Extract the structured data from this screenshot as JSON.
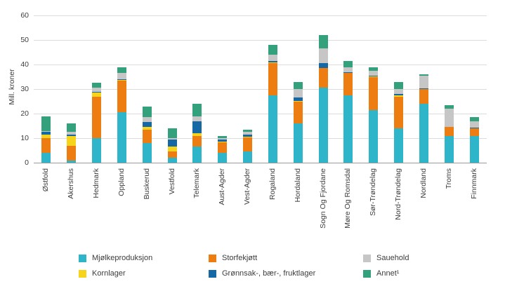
{
  "chart_data": {
    "type": "bar",
    "variant": "stacked",
    "title": "",
    "ylabel": "Mill. kroner",
    "ylim": [
      0,
      60
    ],
    "yticks": [
      0,
      10,
      20,
      30,
      40,
      50,
      60
    ],
    "grid": "horizontal",
    "legend_position": "bottom",
    "categories": [
      "Østfold",
      "Akershus",
      "Hedmark",
      "Oppland",
      "Buskerud",
      "Vestfold",
      "Telemark",
      "Aust-Agder",
      "Vest-Agder",
      "Rogaland",
      "Hordaland",
      "Sogn Og Fjordane",
      "Møre Og Romsdal",
      "Sør-Trøndelag",
      "Nord-Trøndelag",
      "Nordland",
      "Troms",
      "Finnmark"
    ],
    "series": [
      {
        "name": "Mjølkeproduksjon",
        "color": "#2fb5c9",
        "values": [
          4,
          1,
          10,
          20.5,
          8,
          2,
          6.5,
          4,
          4.5,
          27.5,
          16,
          30.5,
          27.5,
          21.5,
          14,
          24,
          11,
          11
        ]
      },
      {
        "name": "Storfekjøtt",
        "color": "#ee7d11",
        "values": [
          6,
          6,
          17,
          13,
          5.5,
          2.5,
          4.5,
          4.5,
          6,
          13,
          9,
          8,
          9,
          13.5,
          13,
          6,
          3.5,
          3
        ]
      },
      {
        "name": "Kornlager",
        "color": "#f6d41c",
        "values": [
          1.5,
          4,
          1.5,
          0.3,
          1,
          2,
          1,
          0.2,
          0.2,
          0.3,
          0.2,
          0,
          0,
          0.3,
          0.5,
          0,
          0,
          0
        ]
      },
      {
        "name": "Grønnsak-, bær-, fruktlager",
        "color": "#1668a5",
        "values": [
          1,
          0.5,
          0.5,
          0.2,
          2,
          3,
          5,
          0.8,
          0.8,
          0.7,
          1.3,
          2,
          0.5,
          0.2,
          0.5,
          0.3,
          0,
          0.3
        ]
      },
      {
        "name": "Sauehold",
        "color": "#c6c6c6",
        "values": [
          0.5,
          1,
          1.5,
          2.5,
          2,
          0.5,
          2,
          0.5,
          1,
          2.5,
          3.5,
          6,
          2,
          2,
          2,
          5,
          7.5,
          2.5
        ]
      },
      {
        "name": "Annet¹",
        "color": "#33a17c",
        "values": [
          6,
          3.5,
          2,
          2.5,
          4.5,
          4,
          5,
          1,
          1,
          4,
          3,
          5.5,
          2.5,
          1.5,
          3,
          0.7,
          1.5,
          1.7
        ]
      }
    ],
    "legend_order": [
      "Mjølkeproduksjon",
      "Storfekjøtt",
      "Sauehold",
      "Kornlager",
      "Grønnsak-, bær-, fruktlager",
      "Annet¹"
    ]
  }
}
